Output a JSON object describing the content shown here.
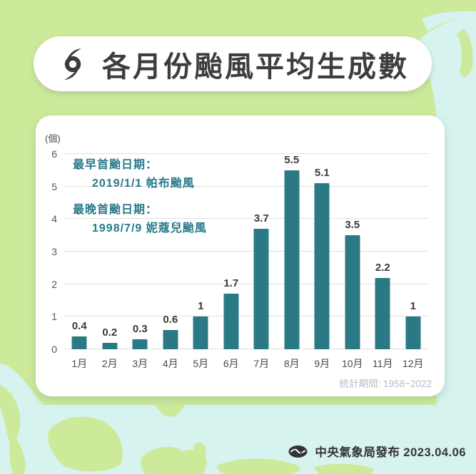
{
  "title": {
    "text": "各月份颱風平均生成數"
  },
  "chart_data": {
    "type": "bar",
    "title": "各月份颱風平均生成數",
    "unit_label": "(個)",
    "categories": [
      "1月",
      "2月",
      "3月",
      "4月",
      "5月",
      "6月",
      "7月",
      "8月",
      "9月",
      "10月",
      "11月",
      "12月"
    ],
    "values": [
      0.4,
      0.2,
      0.3,
      0.6,
      1,
      1.7,
      3.7,
      5.5,
      5.1,
      3.5,
      2.2,
      1
    ],
    "ylim": [
      0,
      6
    ],
    "yticks": [
      0,
      1,
      2,
      3,
      4,
      5,
      6
    ],
    "grid": true,
    "legend_position": "none",
    "bar_color": "#2b7984",
    "annotations": [
      {
        "label": "最早首颱日期：",
        "value": "2019/1/1 帕布颱風"
      },
      {
        "label": "最晚首颱日期：",
        "value": "1998/7/9 妮蔻兒颱風"
      }
    ],
    "note": "統計期間: 1958~2022"
  },
  "footer": {
    "publisher": "中央氣象局發布 2023.04.06"
  },
  "colors": {
    "land_green": "#cdea9b",
    "sea_cyan": "#d6f3f0",
    "bar_teal": "#2b7984",
    "annotation_teal": "#27798b",
    "note_gray": "#b6bec5",
    "title_text": "#3d3d3d"
  }
}
